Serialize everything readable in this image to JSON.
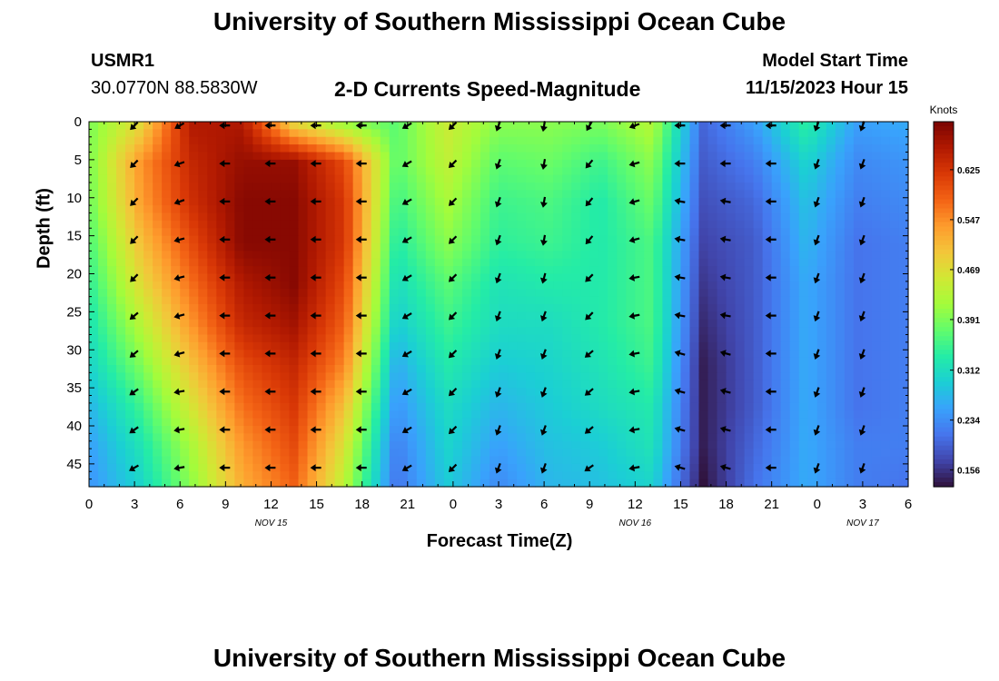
{
  "header": {
    "title": "University of Southern Mississippi Ocean Cube",
    "station": "USMR1",
    "coords": "30.0770N  88.5830W",
    "subtitle": "2-D Currents Speed-Magnitude",
    "model_start_label": "Model Start Time",
    "model_start_value": "11/15/2023 Hour 15"
  },
  "footer": {
    "title": "University of Southern Mississippi Ocean Cube"
  },
  "chart_data": {
    "type": "heatmap",
    "xlabel": "Forecast Time(Z)",
    "ylabel": "Depth (ft)",
    "x_tick_labels": [
      "0",
      "3",
      "6",
      "9",
      "12",
      "15",
      "18",
      "21",
      "0",
      "3",
      "6",
      "9",
      "12",
      "15",
      "18",
      "21",
      "0",
      "3",
      "6"
    ],
    "x_range_hours": [
      0,
      54
    ],
    "date_labels": [
      {
        "label": "NOV 15",
        "hour": 12
      },
      {
        "label": "NOV 16",
        "hour": 36
      },
      {
        "label": "NOV 17",
        "hour": 51
      }
    ],
    "y_ticks": [
      0,
      5,
      10,
      15,
      20,
      25,
      30,
      35,
      40,
      45
    ],
    "y_range_ft": [
      0,
      48
    ],
    "colorbar": {
      "title": "Knots",
      "ticks": [
        "0.625",
        "0.547",
        "0.469",
        "0.391",
        "0.312",
        "0.234",
        "0.156"
      ],
      "tick_values": [
        0.625,
        0.547,
        0.469,
        0.391,
        0.312,
        0.234,
        0.156
      ],
      "range": [
        0.13,
        0.7
      ],
      "colors": [
        "#30123b",
        "#4145ab",
        "#4675ed",
        "#39a2fc",
        "#1bcfd4",
        "#24eca6",
        "#61fc6c",
        "#a4fc3b",
        "#d1e834",
        "#f3c63a",
        "#fe9b2d",
        "#f36315",
        "#d93806",
        "#b11901",
        "#7a0402"
      ]
    },
    "speed_knots": [
      [
        0.39,
        0.47,
        0.66,
        0.66,
        0.47,
        0.4,
        0.37,
        0.45,
        0.4,
        0.4,
        0.39,
        0.43,
        0.2,
        0.25,
        0.34,
        0.25,
        0.26
      ],
      [
        0.39,
        0.54,
        0.64,
        0.68,
        0.68,
        0.6,
        0.37,
        0.44,
        0.37,
        0.38,
        0.35,
        0.4,
        0.19,
        0.22,
        0.3,
        0.23,
        0.24
      ],
      [
        0.38,
        0.53,
        0.63,
        0.69,
        0.69,
        0.62,
        0.35,
        0.42,
        0.35,
        0.36,
        0.33,
        0.38,
        0.18,
        0.2,
        0.28,
        0.22,
        0.23
      ],
      [
        0.36,
        0.5,
        0.6,
        0.69,
        0.69,
        0.62,
        0.33,
        0.4,
        0.34,
        0.35,
        0.33,
        0.36,
        0.17,
        0.19,
        0.27,
        0.21,
        0.22
      ],
      [
        0.34,
        0.47,
        0.57,
        0.66,
        0.69,
        0.6,
        0.31,
        0.37,
        0.32,
        0.33,
        0.33,
        0.36,
        0.16,
        0.19,
        0.26,
        0.21,
        0.22
      ],
      [
        0.32,
        0.43,
        0.54,
        0.64,
        0.67,
        0.58,
        0.29,
        0.35,
        0.31,
        0.31,
        0.33,
        0.36,
        0.15,
        0.19,
        0.26,
        0.21,
        0.22
      ],
      [
        0.3,
        0.39,
        0.5,
        0.6,
        0.64,
        0.55,
        0.26,
        0.33,
        0.29,
        0.3,
        0.32,
        0.35,
        0.14,
        0.19,
        0.26,
        0.21,
        0.22
      ],
      [
        0.27,
        0.35,
        0.46,
        0.57,
        0.62,
        0.5,
        0.24,
        0.31,
        0.27,
        0.29,
        0.31,
        0.33,
        0.14,
        0.19,
        0.26,
        0.21,
        0.22
      ],
      [
        0.25,
        0.32,
        0.42,
        0.54,
        0.6,
        0.46,
        0.22,
        0.3,
        0.25,
        0.28,
        0.29,
        0.32,
        0.14,
        0.2,
        0.26,
        0.22,
        0.22
      ],
      [
        0.24,
        0.3,
        0.4,
        0.52,
        0.58,
        0.43,
        0.21,
        0.29,
        0.23,
        0.27,
        0.28,
        0.3,
        0.13,
        0.21,
        0.26,
        0.22,
        0.21
      ]
    ],
    "arrow_direction_deg": [
      [
        225,
        240,
        270,
        270,
        270,
        270,
        240,
        225,
        200,
        190,
        210,
        250,
        270,
        270,
        270,
        200,
        200
      ],
      [
        225,
        250,
        270,
        270,
        270,
        270,
        240,
        225,
        200,
        190,
        220,
        255,
        270,
        270,
        270,
        200,
        200
      ],
      [
        225,
        250,
        270,
        270,
        270,
        270,
        240,
        225,
        200,
        190,
        220,
        255,
        280,
        280,
        270,
        200,
        200
      ],
      [
        225,
        255,
        270,
        270,
        270,
        270,
        240,
        225,
        200,
        190,
        220,
        255,
        280,
        280,
        270,
        200,
        200
      ],
      [
        225,
        255,
        270,
        270,
        270,
        270,
        240,
        225,
        200,
        195,
        225,
        260,
        280,
        280,
        270,
        200,
        200
      ],
      [
        230,
        255,
        270,
        270,
        270,
        270,
        240,
        225,
        200,
        200,
        225,
        260,
        280,
        280,
        270,
        200,
        200
      ],
      [
        230,
        255,
        270,
        270,
        270,
        270,
        240,
        225,
        200,
        200,
        230,
        260,
        285,
        285,
        270,
        200,
        200
      ],
      [
        235,
        260,
        270,
        270,
        270,
        270,
        240,
        225,
        200,
        200,
        230,
        260,
        285,
        285,
        270,
        200,
        200
      ],
      [
        235,
        260,
        270,
        270,
        270,
        270,
        240,
        225,
        200,
        200,
        230,
        260,
        285,
        285,
        270,
        200,
        200
      ],
      [
        240,
        260,
        270,
        270,
        270,
        270,
        240,
        225,
        200,
        200,
        235,
        260,
        285,
        285,
        270,
        200,
        200
      ]
    ]
  }
}
